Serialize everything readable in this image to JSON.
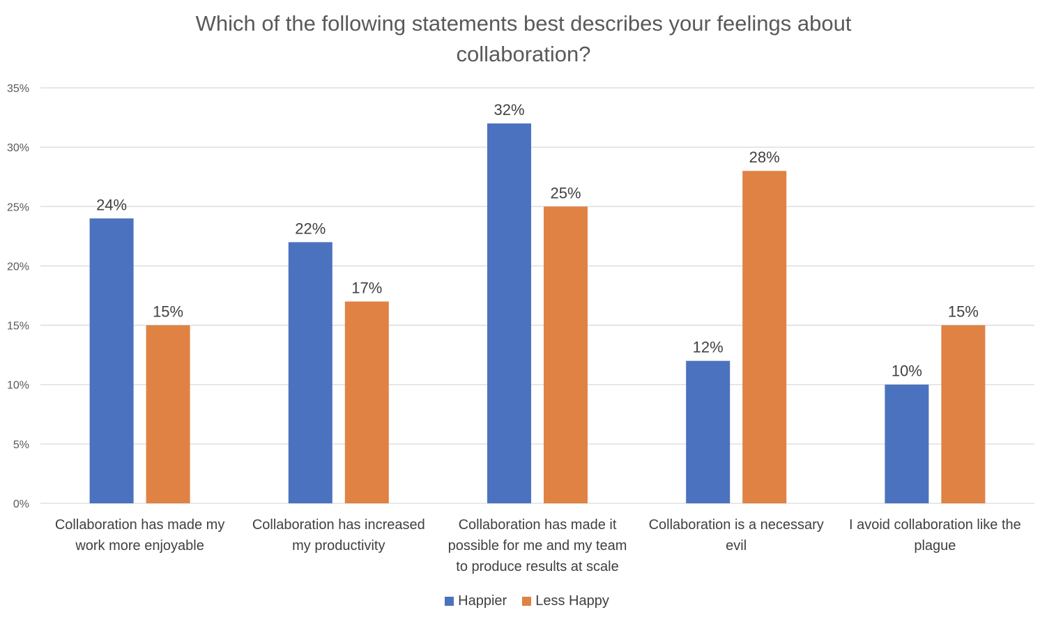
{
  "chart_data": {
    "type": "bar",
    "title_lines": [
      "Which of the following statements best describes your feelings about",
      "collaboration?"
    ],
    "categories": [
      [
        "Collaboration has made my",
        "work more enjoyable"
      ],
      [
        "Collaboration has increased",
        "my productivity"
      ],
      [
        "Collaboration has made it",
        "possible for me and my team",
        "to produce results at scale"
      ],
      [
        "Collaboration is a necessary",
        "evil"
      ],
      [
        "I avoid collaboration like the",
        "plague"
      ]
    ],
    "series": [
      {
        "name": "Happier",
        "color": "#4A72BE",
        "values": [
          24,
          22,
          32,
          12,
          10
        ],
        "labels": [
          "24%",
          "22%",
          "32%",
          "12%",
          "10%"
        ]
      },
      {
        "name": "Less Happy",
        "color": "#DF8244",
        "values": [
          15,
          17,
          25,
          28,
          15
        ],
        "labels": [
          "15%",
          "17%",
          "25%",
          "28%",
          "15%"
        ]
      }
    ],
    "y_ticks": [
      "0%",
      "5%",
      "10%",
      "15%",
      "20%",
      "25%",
      "30%",
      "35%"
    ],
    "ylim": [
      0,
      35
    ],
    "grid": true,
    "legend_position": "bottom"
  }
}
